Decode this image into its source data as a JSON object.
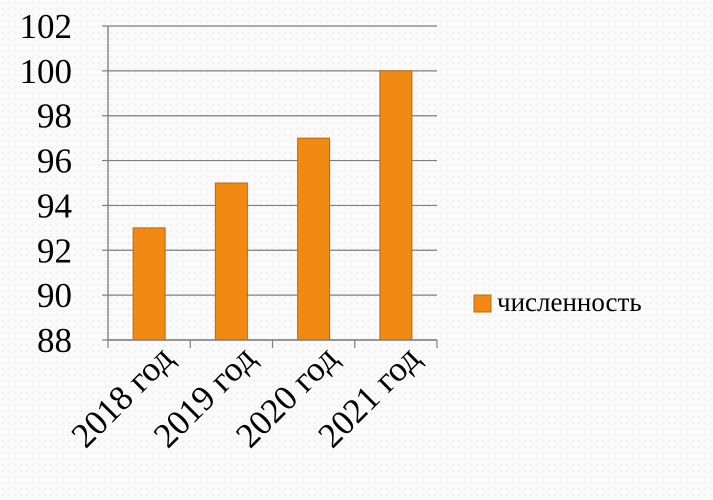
{
  "chart_data": {
    "type": "bar",
    "categories": [
      "2018 год",
      "2019 год",
      "2020 год",
      "2021 год"
    ],
    "series": [
      {
        "name": "численность",
        "values": [
          93,
          95,
          97,
          100
        ]
      }
    ],
    "ylim": [
      88,
      102
    ],
    "yticks": [
      88,
      90,
      92,
      94,
      96,
      98,
      100,
      102
    ],
    "grid": true,
    "legend": "right",
    "bar_color": "#f08a12",
    "bar_edge_color": "#b86a10"
  }
}
